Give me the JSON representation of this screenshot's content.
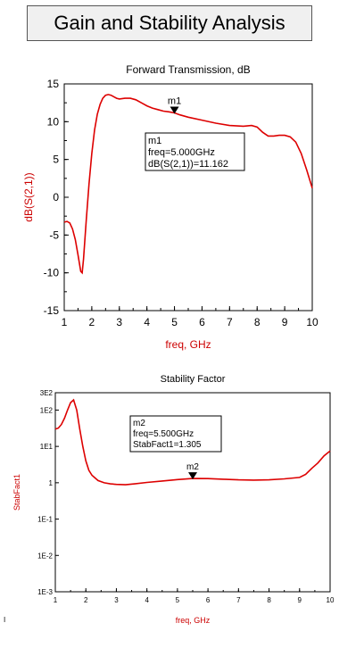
{
  "page": {
    "title": "Gain and Stability Analysis",
    "edge_mark": "I"
  },
  "colors": {
    "trace": "#dd0000",
    "axis_label": "#cc0000",
    "frame": "#000000"
  },
  "chart_data": [
    {
      "type": "line",
      "title": "Forward Transmission, dB",
      "xlabel": "freq, GHz",
      "ylabel": "dB(S(2,1))",
      "xlim": [
        1,
        10
      ],
      "ylim": [
        -15,
        15
      ],
      "x_ticks": [
        "1",
        "2",
        "3",
        "4",
        "5",
        "6",
        "7",
        "8",
        "9",
        "10"
      ],
      "y_ticks": [
        "-15",
        "-10",
        "-5",
        "0",
        "5",
        "10",
        "15"
      ],
      "grid": false,
      "series": [
        {
          "x": [
            1.0,
            1.1,
            1.2,
            1.3,
            1.4,
            1.5,
            1.6,
            1.65,
            1.7,
            1.8,
            1.9,
            2.0,
            2.1,
            2.2,
            2.3,
            2.4,
            2.5,
            2.6,
            2.7,
            2.8,
            2.9,
            3.0,
            3.2,
            3.4,
            3.6,
            3.8,
            4.0,
            4.2,
            4.4,
            4.6,
            4.8,
            5.0,
            5.2,
            5.5,
            6.0,
            6.5,
            7.0,
            7.5,
            7.8,
            8.0,
            8.2,
            8.4,
            8.6,
            8.8,
            9.0,
            9.2,
            9.4,
            9.6,
            9.8,
            10.0
          ],
          "y": [
            -3.3,
            -3.2,
            -3.4,
            -4.2,
            -5.6,
            -7.6,
            -9.8,
            -10.0,
            -8.2,
            -3.0,
            1.8,
            5.8,
            8.9,
            11.0,
            12.3,
            13.1,
            13.5,
            13.6,
            13.5,
            13.3,
            13.1,
            13.0,
            13.1,
            13.1,
            12.9,
            12.5,
            12.1,
            11.8,
            11.6,
            11.4,
            11.3,
            11.162,
            10.9,
            10.6,
            10.2,
            9.8,
            9.5,
            9.4,
            9.5,
            9.3,
            8.6,
            8.1,
            8.1,
            8.2,
            8.2,
            8.0,
            7.3,
            5.8,
            3.6,
            1.2
          ]
        }
      ],
      "marker": {
        "name": "m1",
        "x": 5.0,
        "y": 11.162,
        "lines": [
          "m1",
          "freq=5.000GHz",
          "dB(S(2,1))=11.162"
        ]
      }
    },
    {
      "type": "line",
      "title": "Stability Factor",
      "xlabel": "freq, GHz",
      "ylabel": "StabFact1",
      "scale": "log",
      "xlim": [
        1,
        10
      ],
      "ylim": [
        0.001,
        300
      ],
      "x_ticks": [
        "1",
        "2",
        "3",
        "4",
        "5",
        "6",
        "7",
        "8",
        "9",
        "10"
      ],
      "y_ticks": [
        {
          "label": "3E2",
          "value": 300
        },
        {
          "label": "1E2",
          "value": 100
        },
        {
          "label": "1E1",
          "value": 10
        },
        {
          "label": "1",
          "value": 1
        },
        {
          "label": "1E-1",
          "value": 0.1
        },
        {
          "label": "1E-2",
          "value": 0.01
        },
        {
          "label": "1E-3",
          "value": 0.001
        }
      ],
      "grid": false,
      "series": [
        {
          "x": [
            1.0,
            1.1,
            1.2,
            1.3,
            1.4,
            1.5,
            1.6,
            1.7,
            1.8,
            1.9,
            2.0,
            2.1,
            2.2,
            2.4,
            2.6,
            2.8,
            3.0,
            3.3,
            3.6,
            4.0,
            4.5,
            5.0,
            5.5,
            6.0,
            6.5,
            7.0,
            7.5,
            8.0,
            8.5,
            9.0,
            9.2,
            9.4,
            9.6,
            9.8,
            10.0
          ],
          "y": [
            30,
            32,
            40,
            60,
            100,
            160,
            190,
            100,
            30,
            10,
            4,
            2.2,
            1.6,
            1.15,
            1.0,
            0.93,
            0.9,
            0.88,
            0.93,
            1.02,
            1.12,
            1.22,
            1.305,
            1.3,
            1.25,
            1.2,
            1.18,
            1.2,
            1.28,
            1.4,
            1.7,
            2.5,
            3.5,
            5.5,
            7.5
          ]
        }
      ],
      "marker": {
        "name": "m2",
        "x": 5.5,
        "y": 1.305,
        "lines": [
          "m2",
          "freq=5.500GHz",
          "StabFact1=1.305"
        ]
      }
    }
  ]
}
